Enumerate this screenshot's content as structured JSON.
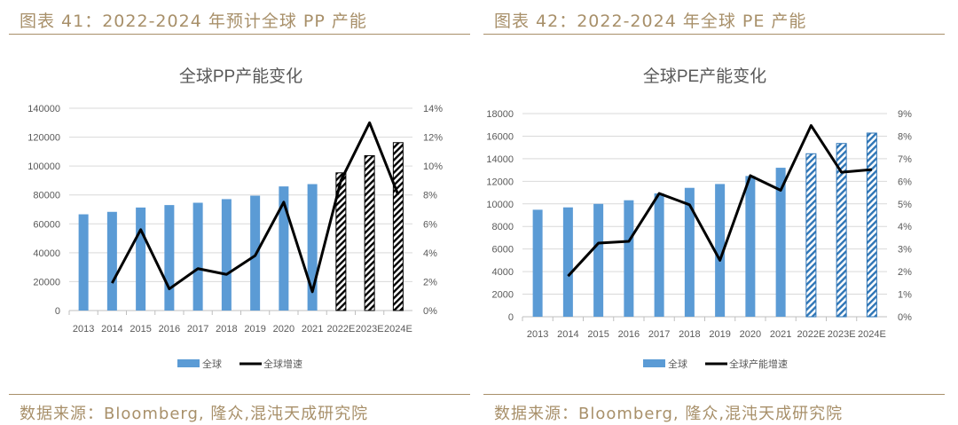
{
  "figures": [
    {
      "caption": "图表 41：2022-2024 年预计全球 PP 产能",
      "source": "数据来源：Bloomberg, 隆众,混沌天成研究院"
    },
    {
      "caption": "图表 42：2022-2024 年全球 PE 产能",
      "source": "数据来源：Bloomberg, 隆众,混沌天成研究院"
    }
  ],
  "colors": {
    "bar": "#5b9bd5",
    "line": "#000000",
    "hatch_pp": "#000000",
    "hatch_pe": "#2e75b6",
    "caption": "#a8906a"
  },
  "chart_data": [
    {
      "type": "bar+line",
      "title": "全球PP产能变化",
      "categories": [
        "2013",
        "2014",
        "2015",
        "2016",
        "2017",
        "2018",
        "2019",
        "2020",
        "2021",
        "2022E",
        "2023E",
        "2024E"
      ],
      "forecast_style": "hatched (2022E-2024E)",
      "left_axis": {
        "ylim": [
          0,
          140000
        ],
        "ticks": [
          "0",
          "20000",
          "40000",
          "60000",
          "80000",
          "100000",
          "120000",
          "140000"
        ]
      },
      "right_axis": {
        "ylim": [
          0,
          14
        ],
        "ticks": [
          "0%",
          "2%",
          "4%",
          "6%",
          "8%",
          "10%",
          "12%",
          "14%"
        ]
      },
      "grid": true,
      "legend_position": "bottom",
      "series": [
        {
          "name": "全球",
          "type": "bar",
          "axis": "left",
          "values": [
            66600,
            68300,
            71300,
            73000,
            74600,
            77100,
            79500,
            85900,
            87500,
            95300,
            107200,
            116200
          ]
        },
        {
          "name": "全球增速",
          "type": "line",
          "axis": "right",
          "unit": "%",
          "values": [
            null,
            1.9,
            5.6,
            1.5,
            2.9,
            2.5,
            3.8,
            7.5,
            1.3,
            9.0,
            13.0,
            8.0
          ]
        }
      ]
    },
    {
      "type": "bar+line",
      "title": "全球PE产能变化",
      "categories": [
        "2013",
        "2014",
        "2015",
        "2016",
        "2017",
        "2018",
        "2019",
        "2020",
        "2021",
        "2022E",
        "2023E",
        "2024E"
      ],
      "forecast_style": "hatched (2022E-2024E)",
      "left_axis": {
        "ylim": [
          0,
          18000
        ],
        "ticks": [
          "0",
          "2000",
          "4000",
          "6000",
          "8000",
          "10000",
          "12000",
          "14000",
          "16000",
          "18000"
        ]
      },
      "right_axis": {
        "ylim": [
          0,
          9
        ],
        "ticks": [
          "0%",
          "1%",
          "2%",
          "3%",
          "4%",
          "5%",
          "6%",
          "7%",
          "8%",
          "9%"
        ]
      },
      "grid": true,
      "legend_position": "bottom",
      "series": [
        {
          "name": "全球",
          "type": "bar",
          "axis": "left",
          "values": [
            9480,
            9690,
            10000,
            10320,
            10930,
            11420,
            11760,
            12470,
            13200,
            14440,
            15350,
            16270
          ]
        },
        {
          "name": "全球产能增速",
          "type": "line",
          "axis": "right",
          "unit": "%",
          "values": [
            null,
            1.8,
            3.26,
            3.34,
            5.46,
            4.96,
            2.5,
            6.25,
            5.6,
            8.47,
            6.4,
            6.52
          ]
        }
      ]
    }
  ]
}
